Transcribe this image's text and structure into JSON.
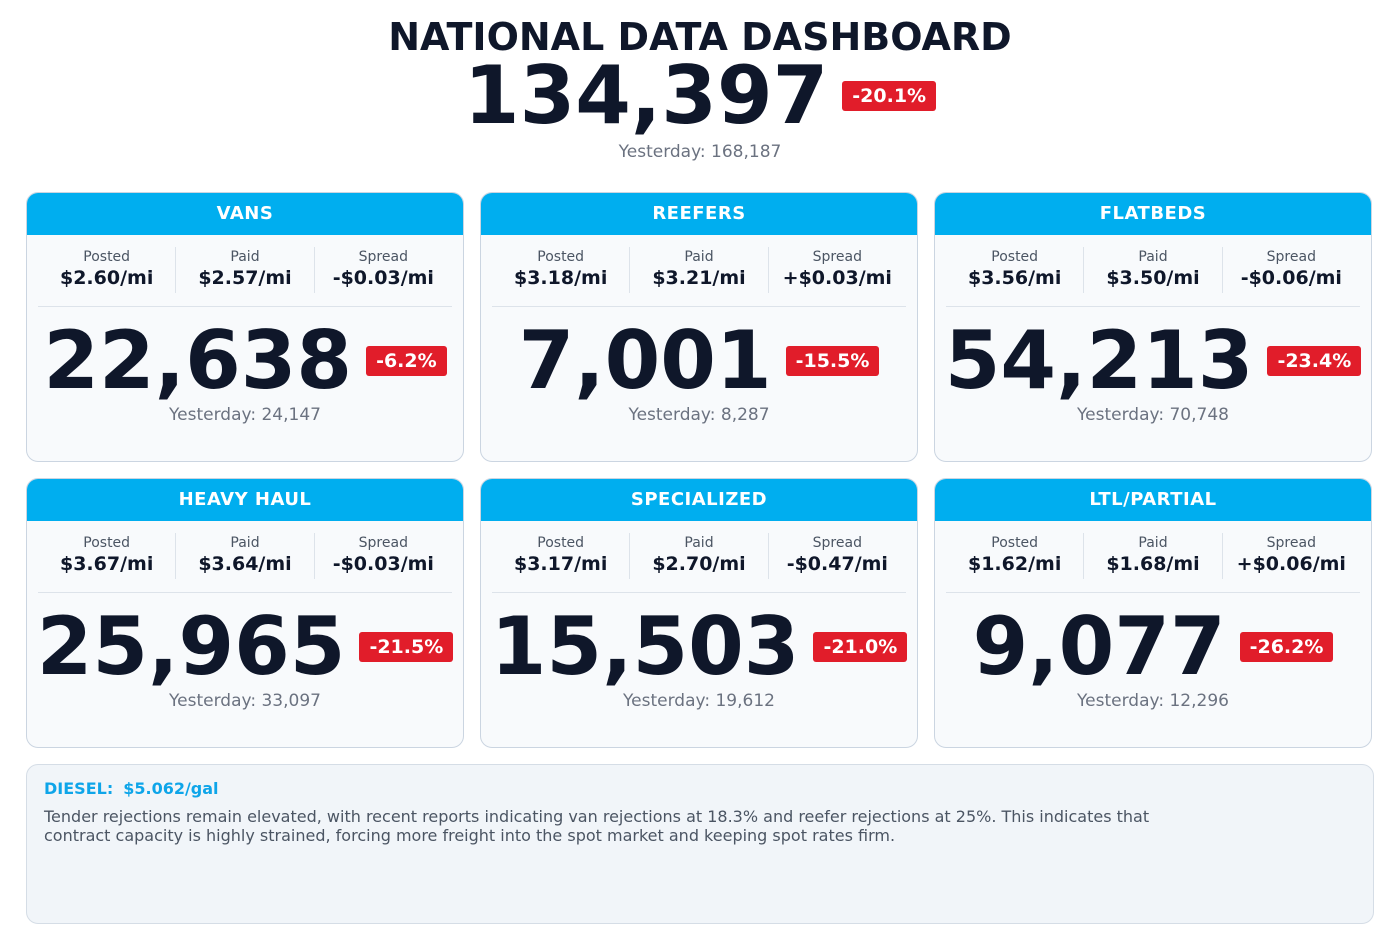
{
  "header": {
    "title": "NATIONAL DATA DASHBOARD",
    "total": "134,397",
    "change": "-20.1%",
    "yesterday": "Yesterday: 168,187"
  },
  "cards": [
    {
      "title": "VANS",
      "metrics": [
        {
          "label": "Posted",
          "value": "$2.60/mi"
        },
        {
          "label": "Paid",
          "value": "$2.57/mi"
        },
        {
          "label": "Spread",
          "value": "-$0.03/mi"
        }
      ],
      "count": "22,638",
      "change": "-6.2%",
      "yesterday": "Yesterday: 24,147"
    },
    {
      "title": "REEFERS",
      "metrics": [
        {
          "label": "Posted",
          "value": "$3.18/mi"
        },
        {
          "label": "Paid",
          "value": "$3.21/mi"
        },
        {
          "label": "Spread",
          "value": "+$0.03/mi"
        }
      ],
      "count": "7,001",
      "change": "-15.5%",
      "yesterday": "Yesterday: 8,287"
    },
    {
      "title": "FLATBEDS",
      "metrics": [
        {
          "label": "Posted",
          "value": "$3.56/mi"
        },
        {
          "label": "Paid",
          "value": "$3.50/mi"
        },
        {
          "label": "Spread",
          "value": "-$0.06/mi"
        }
      ],
      "count": "54,213",
      "change": "-23.4%",
      "yesterday": "Yesterday: 70,748"
    },
    {
      "title": "HEAVY HAUL",
      "metrics": [
        {
          "label": "Posted",
          "value": "$3.67/mi"
        },
        {
          "label": "Paid",
          "value": "$3.64/mi"
        },
        {
          "label": "Spread",
          "value": "-$0.03/mi"
        }
      ],
      "count": "25,965",
      "change": "-21.5%",
      "yesterday": "Yesterday: 33,097"
    },
    {
      "title": "SPECIALIZED",
      "metrics": [
        {
          "label": "Posted",
          "value": "$3.17/mi"
        },
        {
          "label": "Paid",
          "value": "$2.70/mi"
        },
        {
          "label": "Spread",
          "value": "-$0.47/mi"
        }
      ],
      "count": "15,503",
      "change": "-21.0%",
      "yesterday": "Yesterday: 19,612"
    },
    {
      "title": "LTL/PARTIAL",
      "metrics": [
        {
          "label": "Posted",
          "value": "$1.62/mi"
        },
        {
          "label": "Paid",
          "value": "$1.68/mi"
        },
        {
          "label": "Spread",
          "value": "+$0.06/mi"
        }
      ],
      "count": "9,077",
      "change": "-26.2%",
      "yesterday": "Yesterday: 12,296"
    }
  ],
  "notes": {
    "label": "DIESEL:",
    "price": "$5.062/gal",
    "text": "Tender rejections remain elevated, with recent reports indicating van rejections at 18.3% and reefer rejections at 25%. This indicates that contract capacity is highly strained, forcing more freight into the spot market and keeping spot rates firm."
  }
}
